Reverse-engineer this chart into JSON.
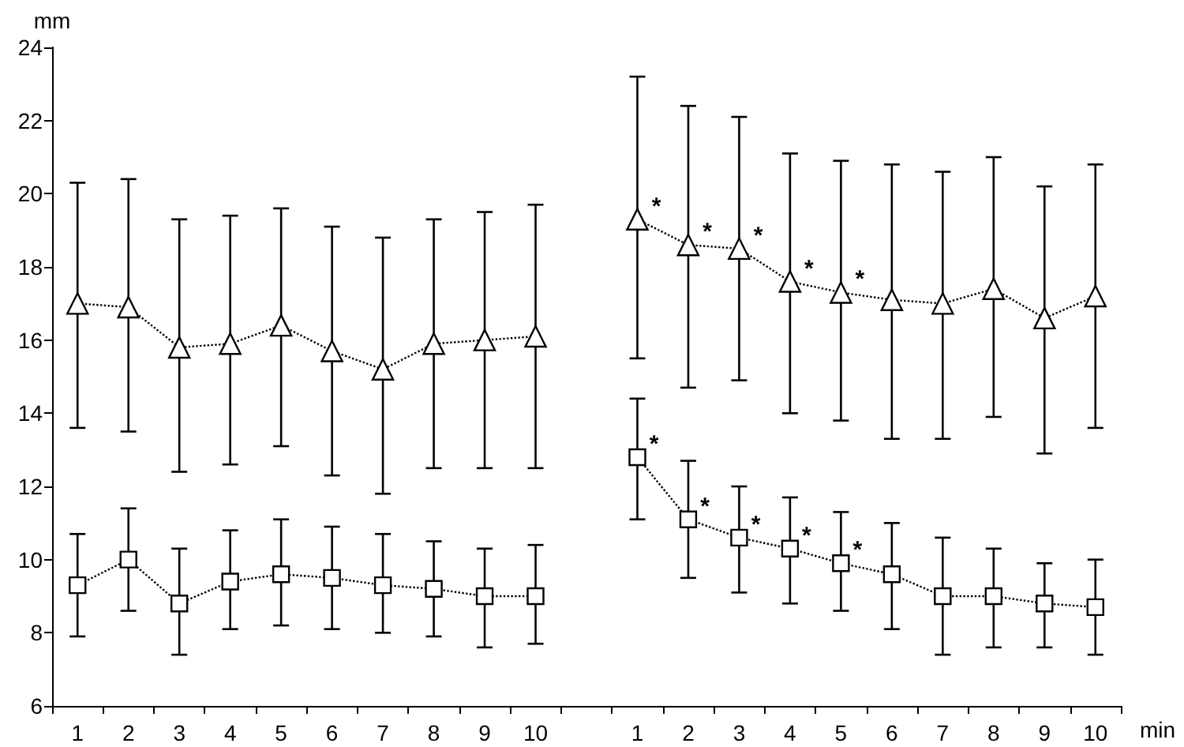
{
  "chart_data": {
    "type": "line",
    "xlabel": "min",
    "ylabel": "mm",
    "categories": [
      "1",
      "2",
      "3",
      "4",
      "5",
      "6",
      "7",
      "8",
      "9",
      "10",
      null,
      "1",
      "2",
      "3",
      "4",
      "5",
      "6",
      "7",
      "8",
      "9",
      "10"
    ],
    "ylim": [
      6,
      24
    ],
    "yticks": [
      6,
      8,
      10,
      12,
      14,
      16,
      18,
      20,
      22,
      24
    ],
    "line_style": "dotted",
    "series": [
      {
        "color": "#000000",
        "marker": "triangle",
        "values": [
          17.0,
          16.9,
          15.8,
          15.9,
          16.4,
          15.7,
          15.2,
          15.9,
          16.0,
          16.1,
          null,
          19.3,
          18.6,
          18.5,
          17.6,
          17.3,
          17.1,
          17.0,
          17.4,
          16.6,
          17.2
        ],
        "errors": [
          [
            13.6,
            20.3
          ],
          [
            13.5,
            20.4
          ],
          [
            12.4,
            19.3
          ],
          [
            12.6,
            19.4
          ],
          [
            13.1,
            19.6
          ],
          [
            12.3,
            19.1
          ],
          [
            11.8,
            18.8
          ],
          [
            12.5,
            19.3
          ],
          [
            12.5,
            19.5
          ],
          [
            12.5,
            19.7
          ],
          null,
          [
            15.5,
            23.2
          ],
          [
            14.7,
            22.4
          ],
          [
            14.9,
            22.1
          ],
          [
            14.0,
            21.1
          ],
          [
            13.8,
            20.9
          ],
          [
            13.3,
            20.8
          ],
          [
            13.3,
            20.6
          ],
          [
            13.9,
            21.0
          ],
          [
            12.9,
            20.2
          ],
          [
            13.6,
            20.8
          ]
        ],
        "value_labels": [
          null,
          null,
          null,
          null,
          null,
          null,
          null,
          null,
          null,
          null,
          null,
          "*",
          "*",
          "*",
          "*",
          "*",
          null,
          null,
          null,
          null,
          null
        ]
      },
      {
        "color": "#000000",
        "marker": "square",
        "values": [
          9.3,
          10.0,
          8.8,
          9.4,
          9.6,
          9.5,
          9.3,
          9.2,
          9.0,
          9.0,
          null,
          12.8,
          11.1,
          10.6,
          10.3,
          9.9,
          9.6,
          9.0,
          9.0,
          8.8,
          8.7
        ],
        "errors": [
          [
            7.9,
            10.7
          ],
          [
            8.6,
            11.4
          ],
          [
            7.4,
            10.3
          ],
          [
            8.1,
            10.8
          ],
          [
            8.2,
            11.1
          ],
          [
            8.1,
            10.9
          ],
          [
            8.0,
            10.7
          ],
          [
            7.9,
            10.5
          ],
          [
            7.6,
            10.3
          ],
          [
            7.7,
            10.4
          ],
          null,
          [
            11.1,
            14.4
          ],
          [
            9.5,
            12.7
          ],
          [
            9.1,
            12.0
          ],
          [
            8.8,
            11.7
          ],
          [
            8.6,
            11.3
          ],
          [
            8.1,
            11.0
          ],
          [
            7.4,
            10.6
          ],
          [
            7.6,
            10.3
          ],
          [
            7.6,
            9.9
          ],
          [
            7.4,
            10.0
          ]
        ],
        "value_labels": [
          null,
          null,
          null,
          null,
          null,
          null,
          null,
          null,
          null,
          null,
          null,
          "*",
          "*",
          "*",
          "*",
          "*",
          null,
          null,
          null,
          null,
          null
        ]
      }
    ]
  }
}
